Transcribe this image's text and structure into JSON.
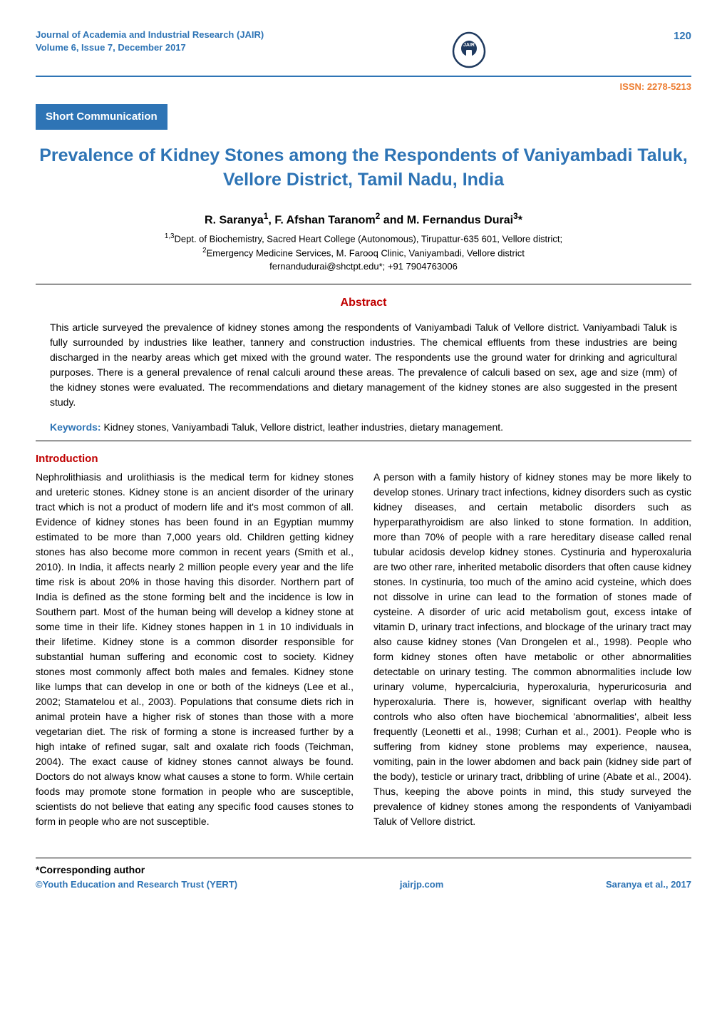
{
  "header": {
    "journal_name": "Journal of Academia and Industrial Research (JAIR)",
    "volume_line": "Volume 6, Issue 7, December 2017",
    "page_number": "120",
    "issn": "ISSN: 2278-5213",
    "logo_label": "JAIR"
  },
  "badge": "Short Communication",
  "title_line1": "Prevalence of Kidney Stones among the Respondents of Vaniyambadi Taluk,",
  "title_line2": "Vellore District, Tamil Nadu, India",
  "authors_html": "R. Saranya<sup>1</sup>, F. Afshan Taranom<sup>2</sup> and M. Fernandus Durai<sup>3</sup>*",
  "affiliations": {
    "line1": "<sup>1,3</sup>Dept. of Biochemistry, Sacred Heart College (Autonomous), Tirupattur-635 601, Vellore district;",
    "line2": "<sup>2</sup>Emergency Medicine Services, M. Farooq Clinic, Vaniyambadi, Vellore district",
    "line3": "fernandudurai@shctpt.edu*; +91 7904763006"
  },
  "abstract": {
    "heading": "Abstract",
    "body": "This article surveyed the prevalence of kidney stones among the respondents of Vaniyambadi Taluk of Vellore district. Vaniyambadi Taluk is fully surrounded by industries like leather, tannery and construction industries. The chemical effluents from these industries are being discharged in the nearby areas which get mixed with the ground water. The respondents use the ground water for drinking and agricultural purposes. There is a general prevalence of renal calculi around these areas. The prevalence of calculi based on sex, age and size (mm) of the kidney stones were evaluated. The recommendations and dietary management of the kidney stones are also suggested in the present study."
  },
  "keywords": {
    "label": "Keywords:",
    "text": " Kidney stones, Vaniyambadi Taluk, Vellore district, leather industries, dietary management."
  },
  "intro": {
    "heading": "Introduction",
    "col1": "Nephrolithiasis and urolithiasis is the medical term for kidney stones and ureteric stones. Kidney stone is an ancient disorder of the urinary tract which is not a product of modern life and it's most common of all. Evidence of kidney stones has been found in an Egyptian mummy estimated to be more than 7,000 years old. Children getting kidney stones has also become more common in recent years (Smith et al., 2010). In India, it affects nearly 2 million people every year and the life time risk is about 20% in those having this disorder. Northern part of India is defined as the stone forming belt and the incidence is low in Southern part. Most of the human being will develop a kidney stone at some time in their life. Kidney stones happen in 1 in 10 individuals in their lifetime. Kidney stone is a common disorder responsible for substantial human suffering and economic cost to society. Kidney stones most commonly affect both males and females. Kidney stone like lumps that can develop in one or both of the kidneys (Lee et al., 2002; Stamatelou et al., 2003). Populations that consume diets rich in animal protein have a higher risk of stones than those with a more vegetarian diet. The risk of forming a stone is increased further by a high intake of refined sugar, salt and oxalate rich foods (Teichman, 2004). The exact cause of kidney stones cannot always be found. Doctors do not always know what causes a stone to form. While certain foods may promote stone formation in people who are susceptible, scientists do not believe that eating any specific food causes stones to form in people who are not susceptible.",
    "col2": "A person with a family history of kidney stones may be more likely to develop stones. Urinary tract infections, kidney disorders such as cystic kidney diseases, and certain metabolic disorders such as hyperparathyroidism are also linked to stone formation. In addition, more than 70% of people with a rare hereditary disease called renal tubular acidosis develop kidney stones. Cystinuria and hyperoxaluria are two other rare, inherited metabolic disorders that often cause kidney stones. In cystinuria, too much of the amino acid cysteine, which does not dissolve in urine can lead to the formation of stones made of cysteine. A disorder of uric acid metabolism gout, excess intake of vitamin D, urinary tract infections, and blockage of the urinary tract may also cause kidney stones (Van Drongelen et al., 1998). People who form kidney stones often have metabolic or other abnormalities detectable on urinary testing. The common abnormalities include low urinary volume, hypercalciuria, hyperoxaluria, hyperuricosuria and hyperoxaluria. There is, however, significant overlap with healthy controls who also often have biochemical 'abnormalities', albeit less frequently (Leonetti et al., 1998; Curhan et al., 2001). People who is suffering from kidney stone problems may experience, nausea, vomiting, pain in the lower abdomen and back pain (kidney side part of the body), testicle or urinary tract, dribbling of urine (Abate et al., 2004). Thus, keeping the above points in mind, this study surveyed the prevalence of kidney stones among the respondents of Vaniyambadi Taluk of Vellore district."
  },
  "footer": {
    "corresponding": "*Corresponding author",
    "trust": "©Youth Education and Research Trust (YERT)",
    "site": "jairjp.com",
    "citation": "Saranya et al., 2017"
  },
  "colors": {
    "blue": "#2e74b5",
    "orange": "#ed7d31",
    "red": "#c00000",
    "black": "#000000",
    "white": "#ffffff"
  }
}
